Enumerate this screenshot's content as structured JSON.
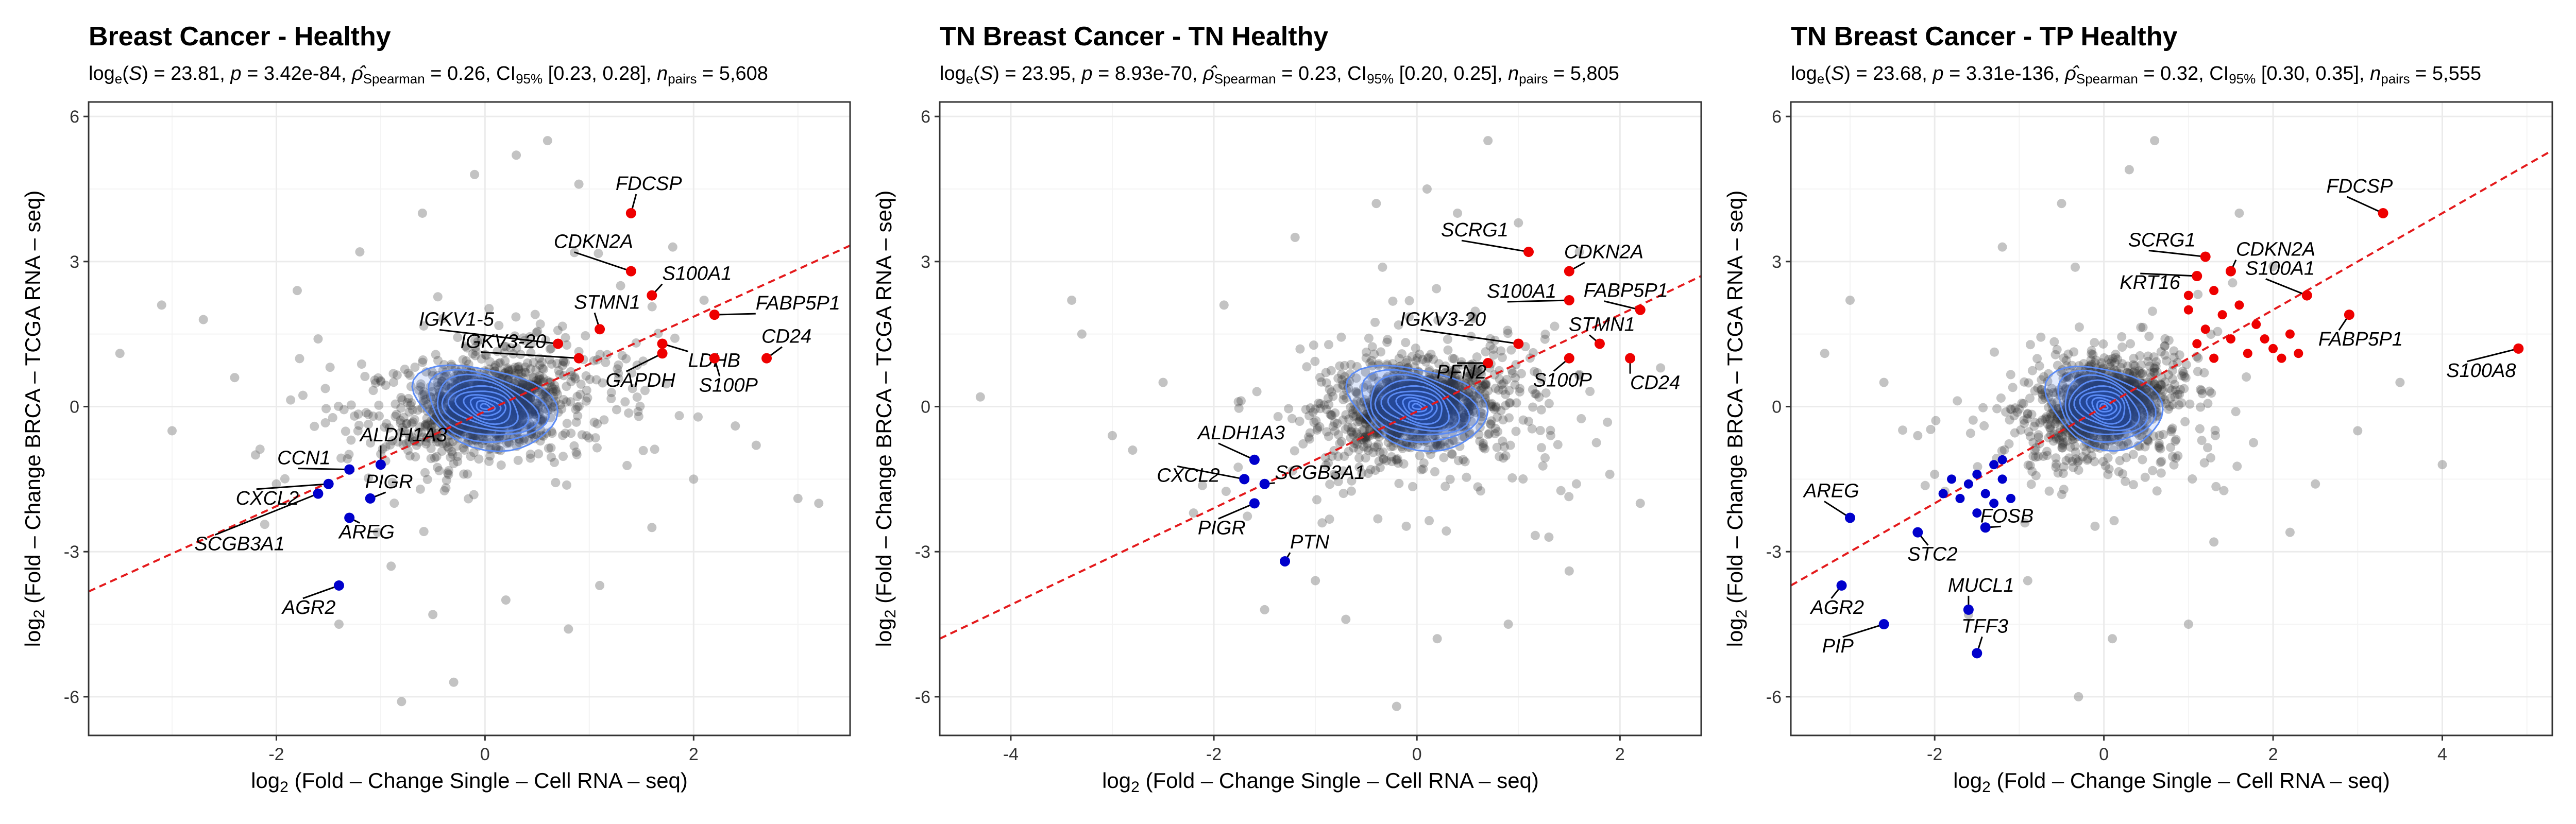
{
  "chart_data": [
    {
      "type": "scatter",
      "title": "Breast Cancer - Healthy",
      "subtitle": {
        "log_s": "23.81",
        "p": "3.42e-84",
        "rho": "0.26",
        "ci": "[0.23, 0.28]",
        "npairs": "5,608"
      },
      "xlabel": {
        "prefix": "log",
        "sub": "2",
        "text": " (Fold – Change Single – Cell RNA – seq)"
      },
      "ylabel": {
        "prefix": "log",
        "sub": "2",
        "text": " (Fold – Change BRCA – TCGA RNA – seq)"
      },
      "xlim": [
        -3.8,
        3.5
      ],
      "ylim": [
        -6.8,
        6.3
      ],
      "xticks": [
        -2,
        0,
        2
      ],
      "yticks": [
        -6,
        -3,
        0,
        3,
        6
      ],
      "xtick_labels": [
        "-2",
        "0",
        "2"
      ],
      "ytick_labels": [
        "-6",
        "-3",
        "0",
        "3",
        "6"
      ],
      "grid": true,
      "regression": {
        "slope": 0.98,
        "intercept": -0.1
      },
      "density_center": [
        0,
        0
      ],
      "outliers": [
        {
          "x": -3.5,
          "y": 1.1
        },
        {
          "x": -3.1,
          "y": 2.1
        },
        {
          "x": -2.7,
          "y": 1.8
        },
        {
          "x": -3.0,
          "y": -0.5
        },
        {
          "x": -2.4,
          "y": 0.6
        },
        {
          "x": -2.2,
          "y": -1.0
        },
        {
          "x": -1.8,
          "y": 2.4
        },
        {
          "x": -1.4,
          "y": -4.5
        },
        {
          "x": -0.9,
          "y": -3.3
        },
        {
          "x": -0.6,
          "y": 4.0
        },
        {
          "x": -0.5,
          "y": -4.3
        },
        {
          "x": -0.3,
          "y": -5.7
        },
        {
          "x": -0.1,
          "y": 4.8
        },
        {
          "x": 0.3,
          "y": 5.2
        },
        {
          "x": 0.6,
          "y": 5.5
        },
        {
          "x": 0.8,
          "y": -4.6
        },
        {
          "x": 0.9,
          "y": 4.6
        },
        {
          "x": 1.1,
          "y": -3.7
        },
        {
          "x": 1.3,
          "y": 2.5
        },
        {
          "x": 1.6,
          "y": -2.5
        },
        {
          "x": 2.0,
          "y": -1.5
        },
        {
          "x": 2.1,
          "y": 2.2
        },
        {
          "x": 2.4,
          "y": -0.4
        },
        {
          "x": 2.6,
          "y": -0.8
        },
        {
          "x": 3.0,
          "y": -1.9
        },
        {
          "x": 3.2,
          "y": -2.0
        },
        {
          "x": -1.2,
          "y": 3.2
        },
        {
          "x": 1.8,
          "y": 3.3
        },
        {
          "x": -0.8,
          "y": -6.1
        },
        {
          "x": -2.0,
          "y": -1.6
        },
        {
          "x": 0.2,
          "y": -4.0
        },
        {
          "x": -1.6,
          "y": 1.4
        }
      ],
      "genes_up": [
        {
          "name": "FDCSP",
          "x": 1.4,
          "y": 4.0
        },
        {
          "name": "CDKN2A",
          "x": 1.4,
          "y": 2.8
        },
        {
          "name": "S100A1",
          "x": 1.6,
          "y": 2.3
        },
        {
          "name": "FABP5P1",
          "x": 2.2,
          "y": 1.9
        },
        {
          "name": "STMN1",
          "x": 1.1,
          "y": 1.6
        },
        {
          "name": "IGKV1-5",
          "x": 0.7,
          "y": 1.3
        },
        {
          "name": "LDHB",
          "x": 1.7,
          "y": 1.3
        },
        {
          "name": "IGKV3-20",
          "x": 0.9,
          "y": 1.0
        },
        {
          "name": "GAPDH",
          "x": 1.7,
          "y": 1.1
        },
        {
          "name": "S100P",
          "x": 2.2,
          "y": 1.0
        },
        {
          "name": "CD24",
          "x": 2.7,
          "y": 1.0
        }
      ],
      "genes_down": [
        {
          "name": "CCN1",
          "x": -1.3,
          "y": -1.3
        },
        {
          "name": "ALDH1A3",
          "x": -1.0,
          "y": -1.2
        },
        {
          "name": "CXCL2",
          "x": -1.5,
          "y": -1.6
        },
        {
          "name": "PIGR",
          "x": -1.1,
          "y": -1.9
        },
        {
          "name": "SCGB3A1",
          "x": -1.6,
          "y": -1.8
        },
        {
          "name": "AREG",
          "x": -1.3,
          "y": -2.3
        },
        {
          "name": "AGR2",
          "x": -1.4,
          "y": -3.7
        }
      ]
    },
    {
      "type": "scatter",
      "title": "TN Breast Cancer - TN Healthy",
      "subtitle": {
        "log_s": "23.95",
        "p": "8.93e-70",
        "rho": "0.23",
        "ci": "[0.20, 0.25]",
        "npairs": "5,805"
      },
      "xlabel": {
        "prefix": "log",
        "sub": "2",
        "text": " (Fold – Change Single – Cell RNA – seq)"
      },
      "ylabel": {
        "prefix": "log",
        "sub": "2",
        "text": " (Fold – Change BRCA – TCGA RNA – seq)"
      },
      "xlim": [
        -4.7,
        2.8
      ],
      "ylim": [
        -6.8,
        6.3
      ],
      "xticks": [
        -4,
        -2,
        0,
        2
      ],
      "yticks": [
        -6,
        -3,
        0,
        3,
        6
      ],
      "xtick_labels": [
        "-4",
        "-2",
        "0",
        "2"
      ],
      "ytick_labels": [
        "-6",
        "-3",
        "0",
        "3",
        "6"
      ],
      "grid": true,
      "regression": {
        "slope": 1.0,
        "intercept": -0.1
      },
      "density_center": [
        0,
        0
      ],
      "outliers": [
        {
          "x": -4.3,
          "y": 0.2
        },
        {
          "x": -3.4,
          "y": 2.2
        },
        {
          "x": -3.3,
          "y": 1.5
        },
        {
          "x": -3.0,
          "y": -0.6
        },
        {
          "x": -2.8,
          "y": -0.9
        },
        {
          "x": -2.5,
          "y": 0.5
        },
        {
          "x": -1.9,
          "y": 2.1
        },
        {
          "x": -1.5,
          "y": -4.2
        },
        {
          "x": -1.0,
          "y": -3.6
        },
        {
          "x": -0.7,
          "y": -4.4
        },
        {
          "x": -0.2,
          "y": -6.2
        },
        {
          "x": 0.1,
          "y": 4.5
        },
        {
          "x": 0.4,
          "y": 4.0
        },
        {
          "x": 0.7,
          "y": 5.5
        },
        {
          "x": 0.9,
          "y": -4.5
        },
        {
          "x": 1.3,
          "y": -2.7
        },
        {
          "x": 1.6,
          "y": 3.2
        },
        {
          "x": 1.9,
          "y": -1.4
        },
        {
          "x": 2.2,
          "y": -2.0
        },
        {
          "x": 2.4,
          "y": 0.8
        },
        {
          "x": -1.2,
          "y": 3.5
        },
        {
          "x": 1.0,
          "y": 3.8
        },
        {
          "x": -2.2,
          "y": -2.2
        },
        {
          "x": 0.2,
          "y": -4.8
        },
        {
          "x": -0.4,
          "y": 4.2
        },
        {
          "x": 1.5,
          "y": -3.4
        }
      ],
      "genes_up": [
        {
          "name": "SCRG1",
          "x": 1.1,
          "y": 3.2
        },
        {
          "name": "CDKN2A",
          "x": 1.5,
          "y": 2.8
        },
        {
          "name": "S100A1",
          "x": 1.5,
          "y": 2.2
        },
        {
          "name": "FABP5P1",
          "x": 2.2,
          "y": 2.0
        },
        {
          "name": "IGKV3-20",
          "x": 1.0,
          "y": 1.3
        },
        {
          "name": "STMN1",
          "x": 1.8,
          "y": 1.3
        },
        {
          "name": "PFN2",
          "x": 0.7,
          "y": 0.9
        },
        {
          "name": "S100P",
          "x": 1.5,
          "y": 1.0
        },
        {
          "name": "CD24",
          "x": 2.1,
          "y": 1.0
        }
      ],
      "genes_down": [
        {
          "name": "ALDH1A3",
          "x": -1.6,
          "y": -1.1
        },
        {
          "name": "CXCL2",
          "x": -1.7,
          "y": -1.5
        },
        {
          "name": "SCGB3A1",
          "x": -1.5,
          "y": -1.6
        },
        {
          "name": "PIGR",
          "x": -1.6,
          "y": -2.0
        },
        {
          "name": "PTN",
          "x": -1.3,
          "y": -3.2
        }
      ]
    },
    {
      "type": "scatter",
      "title": "TN Breast Cancer - TP Healthy",
      "subtitle": {
        "log_s": "23.68",
        "p": "3.31e-136",
        "rho": "0.32",
        "ci": "[0.30, 0.35]",
        "npairs": "5,555"
      },
      "xlabel": {
        "prefix": "log",
        "sub": "2",
        "text": " (Fold – Change Single – Cell RNA – seq)"
      },
      "ylabel": {
        "prefix": "log",
        "sub": "2",
        "text": " (Fold – Change BRCA – TCGA RNA – seq)"
      },
      "xlim": [
        -3.7,
        5.3
      ],
      "ylim": [
        -6.8,
        6.3
      ],
      "xticks": [
        -2,
        0,
        2,
        4
      ],
      "yticks": [
        -6,
        -3,
        0,
        3,
        6
      ],
      "xtick_labels": [
        "-2",
        "0",
        "2",
        "4"
      ],
      "ytick_labels": [
        "-6",
        "-3",
        "0",
        "3",
        "6"
      ],
      "grid": true,
      "regression": {
        "slope": 1.0,
        "intercept": 0.0
      },
      "density_center": [
        0,
        0
      ],
      "outliers": [
        {
          "x": -3.3,
          "y": 1.1
        },
        {
          "x": -3.0,
          "y": 2.2
        },
        {
          "x": -2.6,
          "y": 0.5
        },
        {
          "x": -2.2,
          "y": -0.6
        },
        {
          "x": -1.6,
          "y": -4.3
        },
        {
          "x": -0.9,
          "y": -3.6
        },
        {
          "x": -0.3,
          "y": -6.0
        },
        {
          "x": -0.5,
          "y": 4.2
        },
        {
          "x": 0.3,
          "y": 4.9
        },
        {
          "x": 0.6,
          "y": 5.5
        },
        {
          "x": 1.0,
          "y": -4.5
        },
        {
          "x": 1.3,
          "y": -2.8
        },
        {
          "x": 2.0,
          "y": 2.9
        },
        {
          "x": 2.5,
          "y": -1.6
        },
        {
          "x": 3.0,
          "y": -0.5
        },
        {
          "x": 3.5,
          "y": 0.5
        },
        {
          "x": 4.0,
          "y": -1.2
        },
        {
          "x": -1.2,
          "y": 3.3
        },
        {
          "x": 1.6,
          "y": 4.0
        },
        {
          "x": -2.0,
          "y": -1.4
        },
        {
          "x": 0.1,
          "y": -4.8
        },
        {
          "x": 2.2,
          "y": -2.6
        }
      ],
      "genes_up": [
        {
          "name": "FDCSP",
          "x": 3.3,
          "y": 4.0
        },
        {
          "name": "SCRG1",
          "x": 1.2,
          "y": 3.1
        },
        {
          "name": "KRT16",
          "x": 1.1,
          "y": 2.7
        },
        {
          "name": "CDKN2A",
          "x": 1.5,
          "y": 2.8
        },
        {
          "name": "S100A1",
          "x": 2.4,
          "y": 2.3
        },
        {
          "name": "FABP5P1",
          "x": 2.9,
          "y": 1.9
        },
        {
          "name": "S100A8",
          "x": 4.9,
          "y": 1.2
        }
      ],
      "genes_up_unlabeled": [
        {
          "x": 1.0,
          "y": 2.0
        },
        {
          "x": 1.2,
          "y": 1.6
        },
        {
          "x": 1.4,
          "y": 1.9
        },
        {
          "x": 1.1,
          "y": 1.3
        },
        {
          "x": 1.3,
          "y": 1.0
        },
        {
          "x": 1.6,
          "y": 2.1
        },
        {
          "x": 1.8,
          "y": 1.7
        },
        {
          "x": 1.9,
          "y": 1.4
        },
        {
          "x": 2.0,
          "y": 1.2
        },
        {
          "x": 2.1,
          "y": 1.0
        },
        {
          "x": 2.3,
          "y": 1.1
        },
        {
          "x": 1.5,
          "y": 1.4
        },
        {
          "x": 1.7,
          "y": 1.1
        },
        {
          "x": 2.2,
          "y": 1.5
        },
        {
          "x": 1.0,
          "y": 2.3
        },
        {
          "x": 1.3,
          "y": 2.4
        }
      ],
      "genes_down": [
        {
          "name": "AREG",
          "x": -3.0,
          "y": -2.3
        },
        {
          "name": "STC2",
          "x": -2.2,
          "y": -2.6
        },
        {
          "name": "FOSB",
          "x": -1.4,
          "y": -2.5
        },
        {
          "name": "AGR2",
          "x": -3.1,
          "y": -3.7
        },
        {
          "name": "MUCL1",
          "x": -1.6,
          "y": -4.2
        },
        {
          "name": "PIP",
          "x": -2.6,
          "y": -4.5
        },
        {
          "name": "TFF3",
          "x": -1.5,
          "y": -5.1
        }
      ],
      "genes_down_unlabeled": [
        {
          "x": -1.5,
          "y": -1.4
        },
        {
          "x": -1.3,
          "y": -1.2
        },
        {
          "x": -1.2,
          "y": -1.5
        },
        {
          "x": -1.4,
          "y": -1.8
        },
        {
          "x": -1.6,
          "y": -1.6
        },
        {
          "x": -1.8,
          "y": -1.5
        },
        {
          "x": -1.1,
          "y": -1.9
        },
        {
          "x": -1.3,
          "y": -2.0
        },
        {
          "x": -1.7,
          "y": -1.9
        },
        {
          "x": -1.2,
          "y": -1.1
        },
        {
          "x": -1.5,
          "y": -2.2
        },
        {
          "x": -1.9,
          "y": -1.8
        }
      ]
    }
  ],
  "colors": {
    "background_points": "#303030",
    "regression_line": "#e41a1c",
    "up_genes": "#ee0000",
    "down_genes": "#0000cc",
    "density_contour": "#5b8bf5",
    "density_fill": "#1f5fe8",
    "grid": "#ebebeb",
    "panel_border": "#333333"
  }
}
